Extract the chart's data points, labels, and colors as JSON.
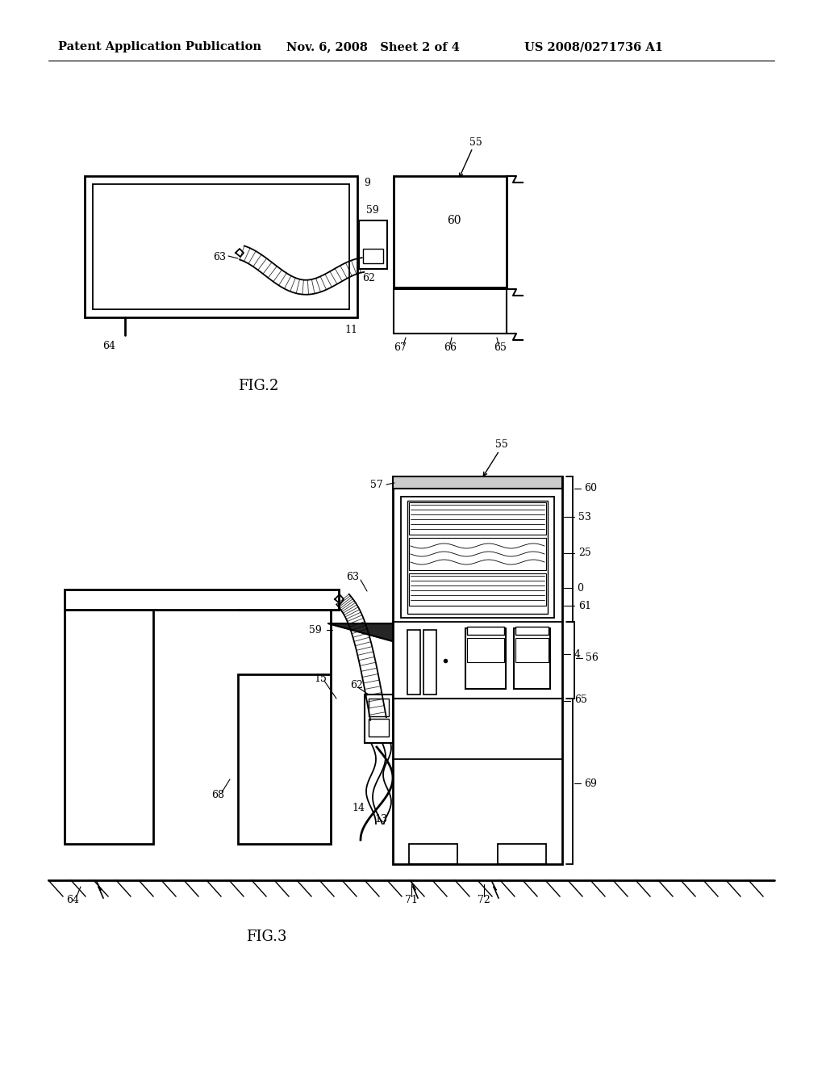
{
  "bg_color": "#ffffff",
  "header_left": "Patent Application Publication",
  "header_mid": "Nov. 6, 2008   Sheet 2 of 4",
  "header_right": "US 2008/0271736 A1",
  "fig2_label": "FIG.2",
  "fig3_label": "FIG.3"
}
